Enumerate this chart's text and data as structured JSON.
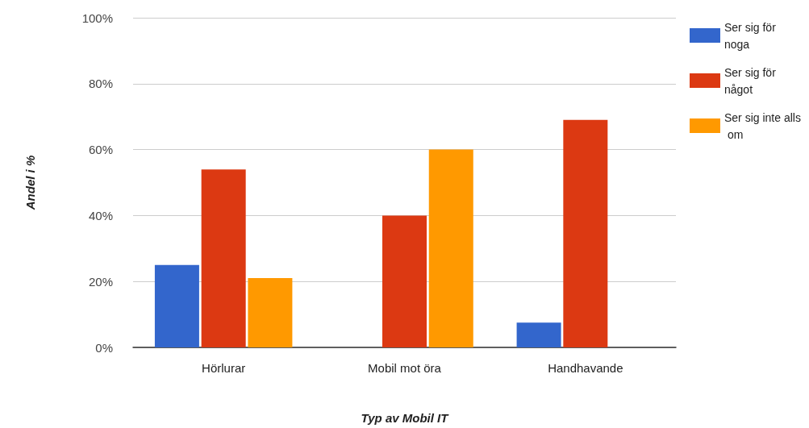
{
  "chart_data": {
    "type": "bar",
    "xlabel": "Typ av Mobil IT",
    "ylabel": "Andel i %",
    "categories": [
      "Hörlurar",
      "Mobil mot öra",
      "Handhavande"
    ],
    "series": [
      {
        "name": "Ser sig för noga",
        "color": "#3366cc",
        "values": [
          25,
          0,
          7.5
        ]
      },
      {
        "name": "Ser sig för något",
        "color": "#dc3912",
        "values": [
          54,
          40,
          69
        ]
      },
      {
        "name": "Ser sig inte alls om",
        "color": "#ff9900",
        "values": [
          21,
          60,
          0
        ]
      }
    ],
    "ylim": [
      0,
      100
    ],
    "yticks": [
      {
        "value": 0,
        "label": "0%"
      },
      {
        "value": 20,
        "label": "20%"
      },
      {
        "value": 40,
        "label": "40%"
      },
      {
        "value": 60,
        "label": "60%"
      },
      {
        "value": 80,
        "label": "80%"
      },
      {
        "value": 100,
        "label": "100%"
      }
    ],
    "grid": "y",
    "legend": "top right"
  }
}
